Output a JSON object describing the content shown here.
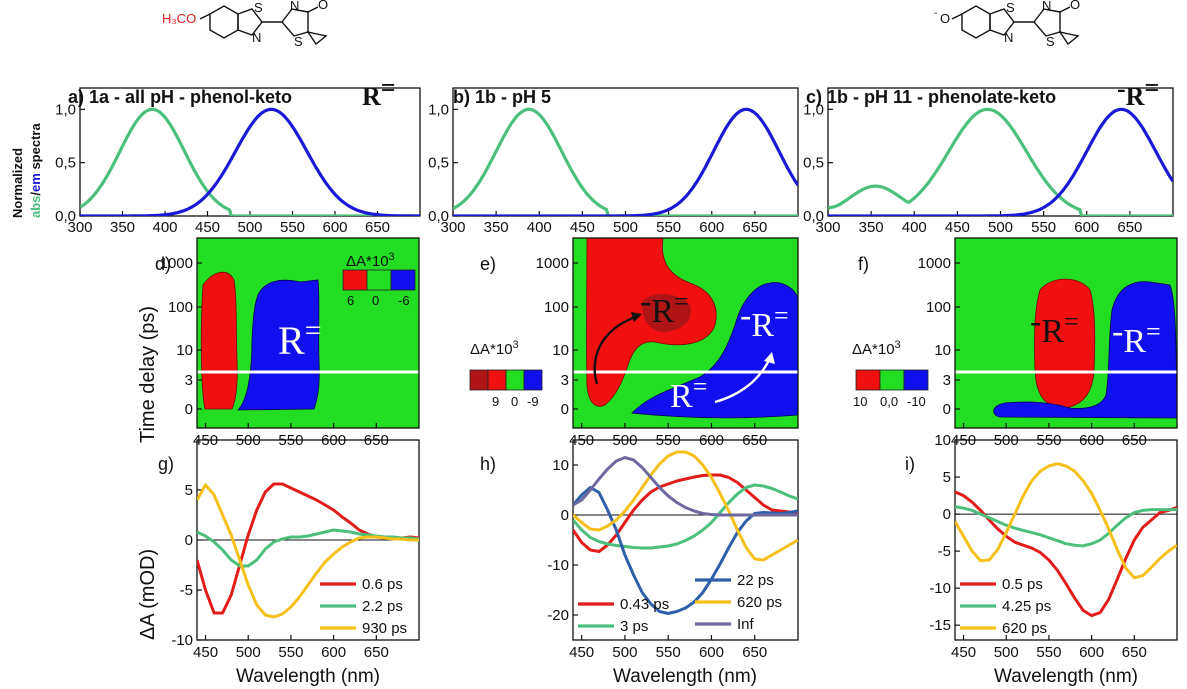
{
  "colors": {
    "abs": "#4cbf7c",
    "em": "#1a1ad6",
    "map_green": "#22dd22",
    "map_red": "#f01010",
    "map_blue": "#1010ee",
    "map_darkred": "#b01515",
    "trace_red": "#e21b1b",
    "trace_green": "#4cbf7c",
    "trace_yellow": "#f6c01a",
    "trace_blue": "#2f5fa8",
    "trace_purple": "#6e6aa0"
  },
  "structures": {
    "left_substituent": "H₃CO",
    "right_substituent": "O",
    "right_charge": "-",
    "atom_S": "S",
    "atom_N": "N",
    "atom_O": "O"
  },
  "panels": {
    "a": {
      "letter": "a)",
      "title": "1a - all pH - phenol-keto",
      "symbol": "R",
      "symbol_sup": "="
    },
    "b": {
      "letter": "b)",
      "title": "1b - pH 5"
    },
    "c": {
      "letter": "c)",
      "title": "1b - pH 11 - phenolate-keto",
      "symbol_prefix": "-",
      "symbol": "R",
      "symbol_sup": "="
    },
    "d": {
      "letter": "d)"
    },
    "e": {
      "letter": "e)"
    },
    "f": {
      "letter": "f)"
    },
    "g": {
      "letter": "g)"
    },
    "h": {
      "letter": "h)"
    },
    "i": {
      "letter": "i)"
    }
  },
  "axes": {
    "spectra_ylabel_line1": "Normalized",
    "spectra_ylabel_abs": "abs",
    "spectra_ylabel_sep": "/",
    "spectra_ylabel_em": "em",
    "spectra_ylabel_rest": " spectra",
    "map_ylabel": "Time delay (ps)",
    "trace_ylabel": "ΔA (mOD)",
    "xlabel": "Wavelength (nm)",
    "spectra_xticks": [
      "300",
      "350",
      "400",
      "450",
      "500",
      "550",
      "600",
      "650"
    ],
    "spectra_yticks": [
      "0,0",
      "0,5",
      "1,0"
    ],
    "map_xticks": [
      "450",
      "500",
      "550",
      "600",
      "650"
    ],
    "map_yticks": [
      "0",
      "3",
      "10",
      "100",
      "1000"
    ],
    "trace_xticks": [
      "450",
      "500",
      "550",
      "600",
      "650"
    ]
  },
  "colorbars": {
    "d": {
      "title": "ΔA*10",
      "exp": "3",
      "ticks": [
        "6",
        "0",
        "-6"
      ]
    },
    "e": {
      "title": "ΔA*10",
      "exp": "3",
      "ticks": [
        "9",
        "0",
        "-9"
      ]
    },
    "f": {
      "title": "ΔA*10",
      "exp": "3",
      "ticks": [
        "10",
        "0,0",
        "-10"
      ]
    }
  },
  "map_labels": {
    "d_blue": {
      "symbol": "R",
      "sup": "="
    },
    "e_red": {
      "prefix": "-",
      "symbol": "R",
      "sup": "="
    },
    "e_blue_top": {
      "prefix": "-",
      "symbol": "R",
      "sup": "="
    },
    "e_blue_bottom": {
      "symbol": "R",
      "sup": "="
    },
    "f_red": {
      "prefix": "-",
      "symbol": "R",
      "sup": "="
    },
    "f_blue": {
      "prefix": "-",
      "symbol": "R",
      "sup": "="
    }
  },
  "chart_data": [
    {
      "id": "a",
      "type": "line",
      "title": "1a - all pH - phenol-keto",
      "xlim": [
        300,
        700
      ],
      "ylim": [
        0,
        1.2
      ],
      "series": [
        {
          "name": "abs",
          "center": 385,
          "width": 38,
          "secondary": null
        },
        {
          "name": "em",
          "center": 525,
          "width": 42,
          "secondary": null
        }
      ]
    },
    {
      "id": "b",
      "type": "line",
      "title": "1b - pH 5",
      "xlim": [
        300,
        700
      ],
      "ylim": [
        0,
        1.2
      ],
      "series": [
        {
          "name": "abs",
          "center": 388,
          "width": 38
        },
        {
          "name": "em",
          "center": 640,
          "width": 38
        }
      ]
    },
    {
      "id": "c",
      "type": "line",
      "title": "1b - pH 11 - phenolate-keto",
      "xlim": [
        300,
        700
      ],
      "ylim": [
        0,
        1.2
      ],
      "series": [
        {
          "name": "abs",
          "center": 485,
          "width": 45,
          "shoulder": {
            "center": 355,
            "width": 30,
            "amp": 0.28
          }
        },
        {
          "name": "em",
          "center": 640,
          "width": 40
        }
      ]
    },
    {
      "id": "g",
      "type": "line",
      "xlim": [
        440,
        700
      ],
      "ylim": [
        -10,
        10
      ],
      "yticks": [
        -10,
        -5,
        0,
        5
      ],
      "series": [
        {
          "name": "0.6 ps",
          "color_key": "trace_red",
          "x": [
            440,
            450,
            460,
            470,
            480,
            490,
            500,
            510,
            520,
            530,
            540,
            550,
            560,
            570,
            580,
            590,
            600,
            610,
            620,
            630,
            640,
            650,
            660,
            670,
            680,
            690,
            700
          ],
          "y": [
            -2,
            -5,
            -7.3,
            -7.3,
            -5.5,
            -2.5,
            0.5,
            3,
            4.8,
            5.6,
            5.6,
            5.2,
            4.8,
            4.4,
            4,
            3.5,
            3,
            2.3,
            1.7,
            1,
            0.6,
            0.3,
            0.2,
            0.1,
            0.2,
            0.3,
            0.2
          ]
        },
        {
          "name": "2.2 ps",
          "color_key": "trace_green",
          "x": [
            440,
            450,
            460,
            470,
            480,
            490,
            500,
            510,
            520,
            530,
            540,
            550,
            560,
            570,
            580,
            590,
            600,
            610,
            620,
            630,
            640,
            650,
            660,
            670,
            680,
            690,
            700
          ],
          "y": [
            0.8,
            0.4,
            -0.2,
            -1,
            -2,
            -2.6,
            -2.6,
            -2,
            -0.9,
            -0.2,
            0.1,
            0.3,
            0.3,
            0.4,
            0.6,
            0.8,
            1,
            0.9,
            0.8,
            0.6,
            0.5,
            0.4,
            0.3,
            0.3,
            0.2,
            0.2,
            0.1
          ]
        },
        {
          "name": "930 ps",
          "color_key": "trace_yellow",
          "x": [
            440,
            450,
            460,
            470,
            480,
            490,
            500,
            510,
            520,
            530,
            540,
            550,
            560,
            570,
            580,
            590,
            600,
            610,
            620,
            630,
            640,
            650,
            660,
            670,
            680,
            690,
            700
          ],
          "y": [
            4,
            5.5,
            4.5,
            2.5,
            0.5,
            -2,
            -4.5,
            -6.5,
            -7.5,
            -7.7,
            -7.4,
            -6.7,
            -5.7,
            -4.5,
            -3.3,
            -2.2,
            -1.4,
            -0.7,
            -0.2,
            0.2,
            0.3,
            0.3,
            0.2,
            0.1,
            0.1,
            0,
            0
          ]
        }
      ]
    },
    {
      "id": "h",
      "type": "line",
      "xlim": [
        440,
        700
      ],
      "ylim": [
        -25,
        15
      ],
      "yticks": [
        -20,
        -10,
        0,
        10
      ],
      "series": [
        {
          "name": "0.43 ps",
          "color_key": "trace_red",
          "x": [
            440,
            450,
            460,
            470,
            480,
            490,
            500,
            510,
            520,
            530,
            540,
            550,
            560,
            570,
            580,
            590,
            600,
            610,
            620,
            630,
            640,
            650,
            660,
            670,
            680,
            690,
            700
          ],
          "y": [
            -3,
            -5.5,
            -7,
            -7.3,
            -6,
            -4,
            -1.5,
            1,
            3,
            4.6,
            5.6,
            6.2,
            6.8,
            7.2,
            7.6,
            7.9,
            8,
            8,
            7.5,
            6.5,
            5,
            3.5,
            2,
            1,
            0.8,
            0.6,
            0.5
          ]
        },
        {
          "name": "3 ps",
          "color_key": "trace_green",
          "x": [
            440,
            450,
            460,
            470,
            480,
            490,
            500,
            510,
            520,
            530,
            540,
            550,
            560,
            570,
            580,
            590,
            600,
            610,
            620,
            630,
            640,
            650,
            660,
            670,
            680,
            690,
            700
          ],
          "y": [
            -1,
            -3,
            -4.5,
            -5.3,
            -5.8,
            -6.1,
            -6.3,
            -6.5,
            -6.6,
            -6.6,
            -6.4,
            -6.2,
            -5.8,
            -5.1,
            -4.2,
            -3,
            -1.5,
            0.5,
            2.5,
            4.2,
            5.5,
            6,
            5.8,
            5.3,
            4.6,
            3.8,
            3.2
          ]
        },
        {
          "name": "22 ps",
          "color_key": "trace_blue",
          "x": [
            440,
            450,
            460,
            470,
            480,
            490,
            500,
            510,
            520,
            530,
            540,
            550,
            560,
            570,
            580,
            590,
            600,
            610,
            620,
            630,
            640,
            650,
            660,
            670,
            680,
            690,
            700
          ],
          "y": [
            2,
            4,
            5.5,
            4.5,
            1,
            -3,
            -8,
            -12,
            -15.5,
            -17.8,
            -19.3,
            -19.7,
            -19.3,
            -18.6,
            -17.4,
            -15.5,
            -12.8,
            -9.8,
            -6.5,
            -3.5,
            -1.2,
            0.3,
            0.5,
            0.4,
            0.3,
            0.5,
            0.8
          ]
        },
        {
          "name": "620 ps",
          "color_key": "trace_yellow",
          "x": [
            440,
            450,
            460,
            470,
            480,
            490,
            500,
            510,
            520,
            530,
            540,
            550,
            560,
            570,
            580,
            590,
            600,
            610,
            620,
            630,
            640,
            650,
            660,
            670,
            680,
            690,
            700
          ],
          "y": [
            0,
            -1.5,
            -2.8,
            -3,
            -2.2,
            -1,
            0.8,
            3,
            5.5,
            8,
            10.2,
            11.8,
            12.6,
            12.6,
            11.8,
            10,
            7.5,
            4.3,
            0.8,
            -3,
            -6.5,
            -8.8,
            -9,
            -8,
            -7,
            -6,
            -5
          ]
        },
        {
          "name": "Inf",
          "color_key": "trace_purple",
          "x": [
            440,
            450,
            460,
            470,
            480,
            490,
            500,
            510,
            520,
            530,
            540,
            550,
            560,
            570,
            580,
            590,
            600,
            610,
            620,
            630,
            640,
            650,
            660,
            670,
            680,
            690,
            700
          ],
          "y": [
            2,
            3,
            5,
            7.2,
            9.2,
            10.8,
            11.5,
            11,
            9.5,
            7.5,
            5.5,
            3.8,
            2.5,
            1.5,
            0.8,
            0.3,
            0.1,
            0,
            0,
            0,
            0,
            0,
            0,
            0,
            0,
            0,
            0
          ]
        }
      ]
    },
    {
      "id": "i",
      "type": "line",
      "xlim": [
        440,
        700
      ],
      "ylim": [
        -17,
        10
      ],
      "yticks": [
        -15,
        -10,
        -5,
        0,
        5,
        10
      ],
      "series": [
        {
          "name": "0.5 ps",
          "color_key": "trace_red",
          "x": [
            440,
            450,
            460,
            470,
            480,
            490,
            500,
            510,
            520,
            530,
            540,
            550,
            560,
            570,
            580,
            590,
            600,
            610,
            620,
            630,
            640,
            650,
            660,
            670,
            680,
            690,
            700
          ],
          "y": [
            3,
            2.5,
            1.6,
            0.5,
            -0.8,
            -2,
            -3,
            -3.8,
            -4.2,
            -4.6,
            -5.2,
            -6.2,
            -7.6,
            -9.4,
            -11.3,
            -13,
            -13.7,
            -13.3,
            -11.5,
            -8.8,
            -6,
            -3.5,
            -1.8,
            -0.8,
            0.2,
            0.5,
            0.9
          ]
        },
        {
          "name": "4.25 ps",
          "color_key": "trace_green",
          "x": [
            440,
            450,
            460,
            470,
            480,
            490,
            500,
            510,
            520,
            530,
            540,
            550,
            560,
            570,
            580,
            590,
            600,
            610,
            620,
            630,
            640,
            650,
            660,
            670,
            680,
            690,
            700
          ],
          "y": [
            1,
            0.8,
            0.5,
            0,
            -0.5,
            -1,
            -1.5,
            -1.9,
            -2.2,
            -2.5,
            -2.8,
            -3.2,
            -3.6,
            -4,
            -4.2,
            -4.3,
            -4,
            -3.5,
            -2.6,
            -1.5,
            -0.5,
            0.2,
            0.5,
            0.6,
            0.6,
            0.6,
            0.6
          ]
        },
        {
          "name": "620 ps",
          "color_key": "trace_yellow",
          "x": [
            440,
            450,
            460,
            470,
            480,
            490,
            500,
            510,
            520,
            530,
            540,
            550,
            560,
            570,
            580,
            590,
            600,
            610,
            620,
            630,
            640,
            650,
            660,
            670,
            680,
            690,
            700
          ],
          "y": [
            -1,
            -3,
            -5,
            -6.3,
            -6.2,
            -4.8,
            -2.5,
            0,
            2.5,
            4.5,
            5.8,
            6.5,
            6.8,
            6.5,
            5.8,
            4.5,
            2.8,
            0.5,
            -2,
            -4.8,
            -7.3,
            -8.6,
            -8.3,
            -7.2,
            -6,
            -5,
            -4.2
          ]
        }
      ]
    }
  ]
}
